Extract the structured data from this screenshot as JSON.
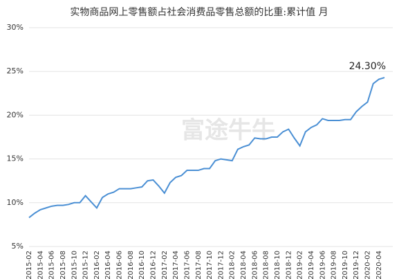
{
  "chart_data": {
    "type": "line",
    "title": "实物商品网上零售额占社会消费品零售总额的比重:累计值 月",
    "watermark": "富途牛牛",
    "categories": [
      "2015-02",
      null,
      "2015-04",
      null,
      "2015-06",
      null,
      "2015-08",
      null,
      "2015-10",
      null,
      "2015-12",
      null,
      "2016-02",
      null,
      "2016-04",
      null,
      "2016-06",
      null,
      "2016-08",
      null,
      "2016-10",
      null,
      "2016-12",
      null,
      "2017-02",
      null,
      "2017-04",
      null,
      "2017-06",
      null,
      "2017-08",
      null,
      "2017-10",
      null,
      "2017-12",
      null,
      "2018-02",
      null,
      "2018-04",
      null,
      "2018-06",
      null,
      "2018-08",
      null,
      "2018-10",
      null,
      "2018-12",
      null,
      "2019-02",
      null,
      "2019-04",
      null,
      "2019-06",
      null,
      "2019-08",
      null,
      "2019-10",
      null,
      "2019-12",
      null,
      "2020-02",
      null,
      "2020-04",
      null
    ],
    "series": [
      {
        "name": "实物商品网上零售额占社会消费品零售总额的比重",
        "color": "#4a8fd4",
        "values": [
          8.3,
          8.8,
          9.2,
          9.4,
          9.6,
          9.7,
          9.7,
          9.8,
          10.0,
          10.0,
          10.8,
          10.1,
          9.4,
          10.6,
          11.0,
          11.2,
          11.6,
          11.6,
          11.6,
          11.7,
          11.8,
          12.5,
          12.6,
          11.9,
          11.1,
          12.3,
          12.9,
          13.1,
          13.7,
          13.7,
          13.7,
          13.9,
          13.9,
          14.8,
          15.0,
          14.9,
          14.8,
          16.1,
          16.4,
          16.6,
          17.4,
          17.3,
          17.3,
          17.5,
          17.5,
          18.1,
          18.4,
          17.4,
          16.5,
          18.1,
          18.6,
          18.9,
          19.6,
          19.4,
          19.4,
          19.4,
          19.5,
          19.5,
          20.4,
          21.0,
          21.5,
          23.6,
          24.1,
          24.3
        ],
        "value_labels": [
          null,
          null,
          null,
          null,
          null,
          null,
          null,
          null,
          null,
          null,
          null,
          null,
          null,
          null,
          null,
          null,
          null,
          null,
          null,
          null,
          null,
          null,
          null,
          null,
          null,
          null,
          null,
          null,
          null,
          null,
          null,
          null,
          null,
          null,
          null,
          null,
          null,
          null,
          null,
          null,
          null,
          null,
          null,
          null,
          null,
          null,
          null,
          null,
          null,
          null,
          null,
          null,
          null,
          null,
          null,
          null,
          null,
          null,
          null,
          null,
          null,
          null,
          null,
          "24.30%"
        ]
      }
    ],
    "ylim": [
      5,
      30
    ],
    "yticks": [
      {
        "value": 5,
        "label": "5%"
      },
      {
        "value": 10,
        "label": "10%"
      },
      {
        "value": 15,
        "label": "15%"
      },
      {
        "value": 20,
        "label": "20%"
      },
      {
        "value": 25,
        "label": "25%"
      },
      {
        "value": 30,
        "label": "30%"
      }
    ],
    "grid": true
  }
}
